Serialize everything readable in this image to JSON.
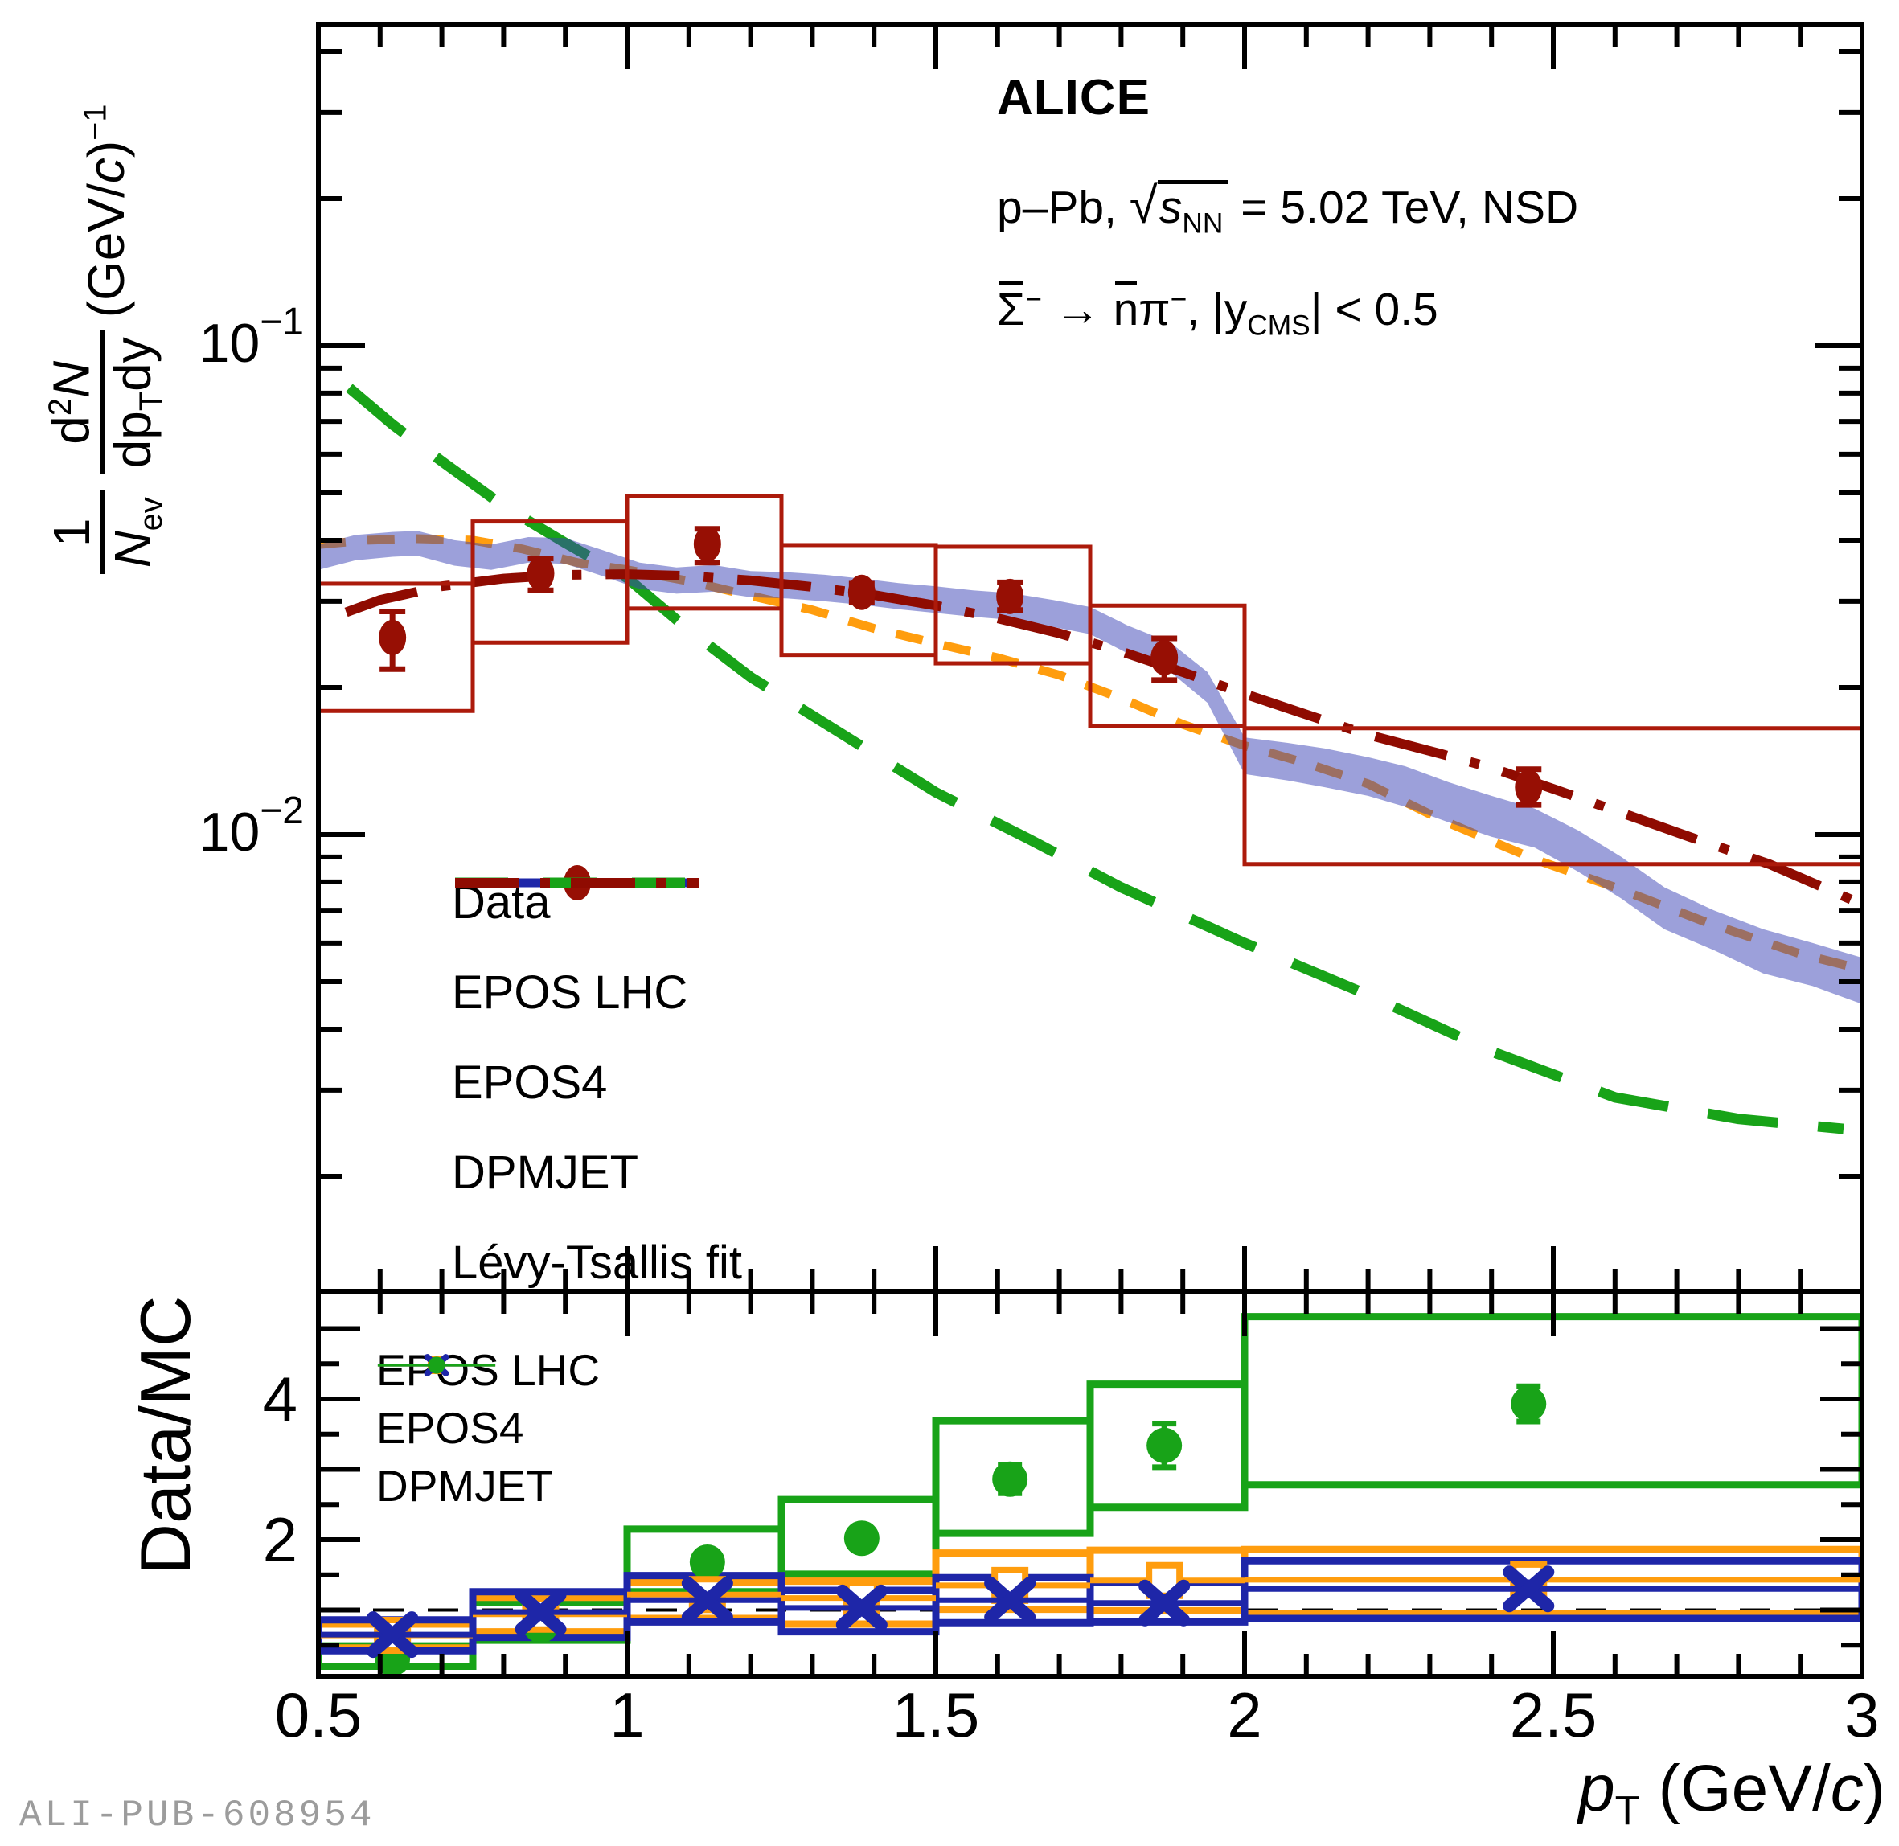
{
  "watermark": "ALI-PUB-608954",
  "title": {
    "experiment": "ALICE",
    "system_prefix": "p–Pb, ",
    "sqrt_symbol": "√",
    "sqrt_arg": "s",
    "sqrt_sub": "NN",
    "system_suffix": " = 5.02 TeV, NSD",
    "decay_sigma": "Σ",
    "decay_sigma_sup": "−",
    "decay_arrow": " → ",
    "decay_nbar": "n",
    "decay_pi": "π",
    "decay_pi_sup": "−",
    "rap_pre": ", |y",
    "rap_sub": "CMS",
    "rap_post": "| < 0.5"
  },
  "ytitle": {
    "one": "1",
    "N": "N",
    "ev": "ev",
    "d": "d",
    "two": "2",
    "N2": "N",
    "dp": "dp",
    "T": "T",
    "dy": "dy",
    "unit_pre": "(GeV/",
    "c": "c",
    "unit_post": ")",
    "exp": "−1"
  },
  "xtitle": {
    "p": "p",
    "T": "T",
    "unit_pre": " (GeV/",
    "c": "c",
    "unit_post": ")"
  },
  "ratio_axis_label": "Data/MC",
  "legend_spectrum": [
    {
      "label": "Data",
      "style": "data"
    },
    {
      "label": "EPOS LHC",
      "style": "eposlhc"
    },
    {
      "label": "EPOS4",
      "style": "epos4"
    },
    {
      "label": "DPMJET",
      "style": "dpmjet"
    },
    {
      "label": "Lévy-Tsallis fit",
      "style": "levy"
    }
  ],
  "legend_ratio": [
    {
      "label": "EPOS LHC",
      "style": "eposlhc-sq"
    },
    {
      "label": "EPOS4",
      "style": "epos4-x"
    },
    {
      "label": "DPMJET",
      "style": "dpmjet-dot"
    }
  ],
  "colors": {
    "data_marker": "#970F04",
    "data_sys_box": "#AC1A0B",
    "epos_lhc": "#FF9D0E",
    "epos4": "#1E26A8",
    "epos4_band": "rgba(58,65,181,0.5)",
    "dpmjet": "#18A318",
    "levy_fit": "#8F0B01",
    "frame": "#000000",
    "watermark_gray": "#9C9C9C"
  },
  "chart_data": [
    {
      "type": "scatter",
      "panel": "spectrum",
      "title": "ALICE p-Pb 5.02 TeV NSD anti-Sigma- spectrum",
      "xlabel": "pT (GeV/c)",
      "ylabel": "1/Nev d2N/(dpT dy) (GeV/c)-1",
      "xlim": [
        0.5,
        3.0
      ],
      "ylim": [
        0.00116,
        0.455
      ],
      "yscale": "log",
      "x_major_ticks": [
        0.5,
        1.0,
        1.5,
        2.0,
        2.5,
        3.0
      ],
      "x_tick_labels": [
        "0.5",
        "1",
        "1.5",
        "2",
        "2.5",
        "3"
      ],
      "x_minor_step": 0.1,
      "y_labeled_decades": [
        -1,
        -2
      ],
      "bin_edges": [
        0.5,
        0.75,
        1.0,
        1.25,
        1.5,
        1.75,
        2.0,
        3.0
      ],
      "data_points": {
        "pt": [
          0.62,
          0.86,
          1.13,
          1.38,
          1.62,
          1.87,
          2.46
        ],
        "y": [
          0.0253,
          0.0342,
          0.0393,
          0.0313,
          0.0307,
          0.023,
          0.0125
        ],
        "stat_up": [
          0.0033,
          0.0025,
          0.0029,
          0.0013,
          0.0021,
          0.0022,
          0.0011
        ],
        "stat_dn": [
          0.0035,
          0.0026,
          0.0033,
          0.0014,
          0.0019,
          0.0023,
          0.001
        ],
        "sys_lo": [
          0.0179,
          0.0247,
          0.029,
          0.0233,
          0.0224,
          0.0167,
          0.0087
        ],
        "sys_hi": [
          0.0326,
          0.0437,
          0.0492,
          0.0391,
          0.0388,
          0.0294,
          0.0165
        ]
      },
      "series": [
        {
          "name": "EPOS LHC",
          "style": "dashed-orange",
          "pt": [
            0.5,
            0.58,
            0.66,
            0.75,
            0.83,
            0.92,
            1.0,
            1.1,
            1.2,
            1.3,
            1.4,
            1.5,
            1.6,
            1.7,
            1.8,
            1.9,
            2.0,
            2.1,
            2.2,
            2.32,
            2.47,
            2.6,
            2.75,
            2.9,
            3.0
          ],
          "y": [
            0.0392,
            0.04,
            0.0403,
            0.04,
            0.0384,
            0.036,
            0.0348,
            0.033,
            0.0308,
            0.0288,
            0.0264,
            0.0246,
            0.023,
            0.0212,
            0.019,
            0.0168,
            0.0152,
            0.014,
            0.0127,
            0.0107,
            0.0089,
            0.0078,
            0.0066,
            0.0057,
            0.0053
          ]
        },
        {
          "name": "EPOS4",
          "style": "band-violet",
          "pt": [
            0.5,
            0.56,
            0.62,
            0.66,
            0.72,
            0.78,
            0.84,
            0.9,
            0.96,
            1.02,
            1.08,
            1.14,
            1.2,
            1.26,
            1.32,
            1.38,
            1.44,
            1.5,
            1.56,
            1.62,
            1.69,
            1.75,
            1.81,
            1.88,
            1.94,
            2.0,
            2.07,
            2.13,
            2.2,
            2.26,
            2.33,
            2.4,
            2.47,
            2.54,
            2.61,
            2.68,
            2.76,
            2.84,
            2.92,
            3.0
          ],
          "y_up": [
            0.0392,
            0.041,
            0.0416,
            0.0418,
            0.04,
            0.0392,
            0.0406,
            0.0404,
            0.0382,
            0.036,
            0.0352,
            0.0356,
            0.0346,
            0.0344,
            0.034,
            0.0334,
            0.0327,
            0.0322,
            0.0316,
            0.0312,
            0.0302,
            0.0292,
            0.0268,
            0.0247,
            0.0215,
            0.0158,
            0.0154,
            0.015,
            0.0144,
            0.0138,
            0.0128,
            0.012,
            0.0113,
            0.0102,
            0.009,
            0.0078,
            0.007,
            0.0064,
            0.006,
            0.0056
          ],
          "y_lo": [
            0.0348,
            0.0364,
            0.037,
            0.0372,
            0.0355,
            0.0348,
            0.036,
            0.0358,
            0.0338,
            0.0318,
            0.0311,
            0.0314,
            0.0306,
            0.0304,
            0.03,
            0.0295,
            0.0289,
            0.0284,
            0.0279,
            0.0275,
            0.0266,
            0.0257,
            0.0235,
            0.0215,
            0.0186,
            0.0133,
            0.0129,
            0.0125,
            0.012,
            0.0114,
            0.0106,
            0.0099,
            0.0094,
            0.0084,
            0.0074,
            0.0064,
            0.0058,
            0.0052,
            0.0049,
            0.0045
          ]
        },
        {
          "name": "DPMJET",
          "style": "longdash-green",
          "pt": [
            0.55,
            0.62,
            0.7,
            0.8,
            0.9,
            1.0,
            1.1,
            1.2,
            1.35,
            1.5,
            1.65,
            1.8,
            2.0,
            2.2,
            2.4,
            2.6,
            2.8,
            2.97
          ],
          "y": [
            0.082,
            0.069,
            0.058,
            0.047,
            0.0395,
            0.0335,
            0.0262,
            0.021,
            0.016,
            0.0122,
            0.0098,
            0.0078,
            0.006,
            0.0047,
            0.0036,
            0.0029,
            0.00262,
            0.0025
          ]
        },
        {
          "name": "Levy-Tsallis fit",
          "style": "dashdot-darkred",
          "pt": [
            0.545,
            0.6,
            0.7,
            0.8,
            0.9,
            1.0,
            1.1,
            1.2,
            1.3,
            1.4,
            1.5,
            1.6,
            1.7,
            1.8,
            1.9,
            2.0,
            2.1,
            2.2,
            2.32,
            2.4,
            2.5,
            2.6,
            2.72,
            2.85,
            3.0
          ],
          "y": [
            0.0285,
            0.0302,
            0.0322,
            0.0334,
            0.034,
            0.0341,
            0.0338,
            0.0331,
            0.0321,
            0.0309,
            0.0294,
            0.0277,
            0.0258,
            0.0237,
            0.0215,
            0.0194,
            0.0176,
            0.016,
            0.0146,
            0.0137,
            0.0124,
            0.0112,
            0.0099,
            0.0087,
            0.0072
          ]
        }
      ]
    },
    {
      "type": "scatter",
      "panel": "ratio",
      "title": "Data/MC",
      "xlabel": "pT (GeV/c)",
      "ylabel": "Data/MC",
      "xlim": [
        0.5,
        3.0
      ],
      "ylim": [
        0.057,
        5.52
      ],
      "y_labeled_ticks": [
        2,
        4
      ],
      "y_major_ticks": [
        1,
        2,
        3,
        4,
        5
      ],
      "y_minor_step": 0.5,
      "reference_line": 1.0,
      "bin_edges": [
        0.5,
        0.75,
        1.0,
        1.25,
        1.5,
        1.75,
        2.0,
        3.0
      ],
      "x_centers": [
        0.62,
        0.86,
        1.13,
        1.38,
        1.62,
        1.87,
        2.46
      ],
      "series": [
        {
          "name": "EPOS LHC",
          "marker": "open-square-orange",
          "y": [
            0.64,
            0.94,
            1.22,
            1.17,
            1.35,
            1.42,
            1.43
          ],
          "stat": [
            0.05,
            0.05,
            0.06,
            0.05,
            0.09,
            0.09,
            0.12
          ],
          "sys_lo": [
            0.46,
            0.69,
            0.88,
            0.8,
            1.01,
            0.99,
            0.95
          ],
          "sys_hi": [
            0.8,
            1.18,
            1.4,
            1.41,
            1.81,
            1.85,
            1.86
          ]
        },
        {
          "name": "EPOS4",
          "marker": "cross-blue",
          "y": [
            0.65,
            0.97,
            1.14,
            1.03,
            1.14,
            1.1,
            1.3
          ],
          "stat": [
            0.04,
            0.05,
            0.05,
            0.05,
            0.07,
            0.08,
            0.1
          ],
          "sys_lo": [
            0.42,
            0.61,
            0.83,
            0.69,
            0.82,
            0.83,
            0.88
          ],
          "sys_hi": [
            0.86,
            1.26,
            1.49,
            1.28,
            1.46,
            1.39,
            1.7
          ]
        },
        {
          "name": "DPMJET",
          "marker": "circle-green",
          "y": [
            0.31,
            0.78,
            1.68,
            2.02,
            2.86,
            3.34,
            3.93
          ],
          "stat": [
            0.05,
            0.12,
            0.09,
            0.1,
            0.2,
            0.31,
            0.25
          ],
          "sys_lo": [
            0.2,
            0.57,
            1.26,
            1.51,
            2.09,
            2.46,
            2.78
          ],
          "sys_hi": [
            0.49,
            1.11,
            2.15,
            2.57,
            3.69,
            4.21,
            5.17
          ]
        }
      ]
    }
  ]
}
